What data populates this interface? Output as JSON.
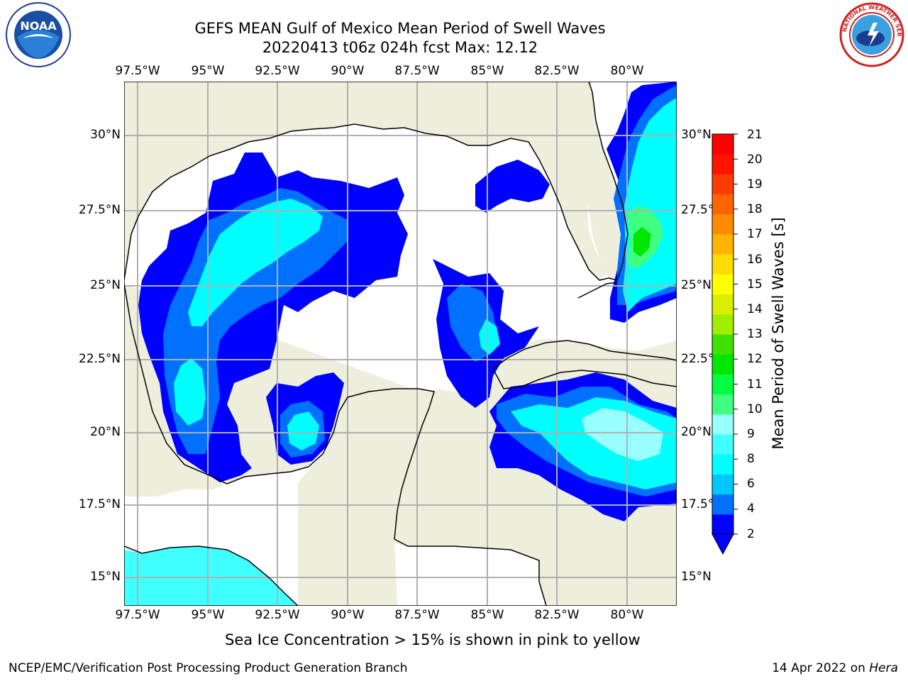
{
  "header": {
    "title_line1": "GEFS MEAN Gulf of Mexico Mean Period of Swell Waves",
    "title_line2": "20220413 t06z 024h fcst   Max: 12.12"
  },
  "map": {
    "lon_labels": [
      "97.5°W",
      "95°W",
      "92.5°W",
      "90°W",
      "87.5°W",
      "85°W",
      "82.5°W",
      "80°W"
    ],
    "lat_labels": [
      "30°N",
      "27.5°N",
      "25°N",
      "22.5°N",
      "20°N",
      "17.5°N",
      "15°N"
    ],
    "colors": {
      "land": "#eeeedc",
      "ocean": "#ffffff",
      "grid": "#b0b0b0",
      "coast": "#000000"
    }
  },
  "colorbar": {
    "title": "Mean Period of Swell Waves [s]",
    "ticks": [
      "2",
      "4",
      "6",
      "8",
      "9",
      "10",
      "11",
      "12",
      "13",
      "14",
      "15",
      "16",
      "17",
      "18",
      "19",
      "20",
      "21"
    ],
    "colors": [
      "#0000ff",
      "#0070ff",
      "#00c8ff",
      "#00ffff",
      "#40ffff",
      "#99ffff",
      "#40ff80",
      "#00ff40",
      "#00e600",
      "#40e000",
      "#a0ee00",
      "#d8f000",
      "#ffff00",
      "#ffdc00",
      "#ffb400",
      "#ff8c00",
      "#ff6400",
      "#ff3c00",
      "#ff1400",
      "#ff0000"
    ]
  },
  "footer": {
    "note": "Sea Ice Concentration > 15% is shown in pink to yellow",
    "left": "NCEP/EMC/Verification Post Processing Product Generation Branch",
    "right_prefix": "14 Apr 2022 on ",
    "right_host": "Hera"
  },
  "logos": {
    "noaa": "NOAA",
    "nws": "NATIONAL WEATHER SERVICE"
  }
}
